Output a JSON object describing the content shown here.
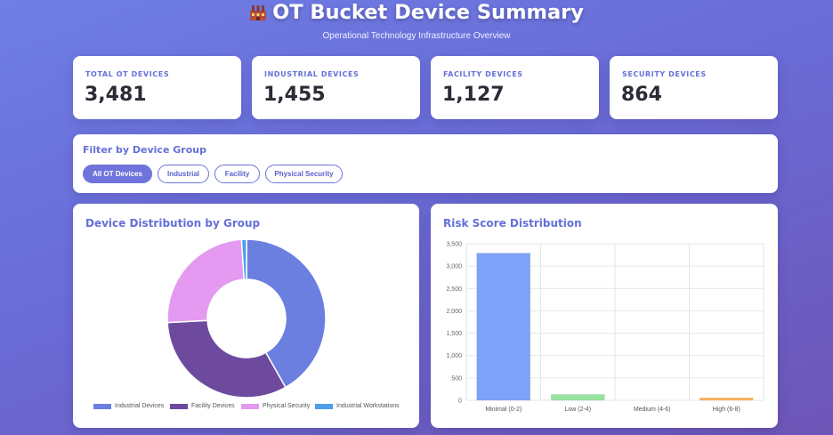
{
  "header": {
    "title": "OT Bucket Device Summary",
    "title_icon": "factory-icon",
    "subtitle": "Operational Technology Infrastructure Overview"
  },
  "stats": [
    {
      "label": "TOTAL OT DEVICES",
      "value": "3,481"
    },
    {
      "label": "INDUSTRIAL DEVICES",
      "value": "1,455"
    },
    {
      "label": "FACILITY DEVICES",
      "value": "1,127"
    },
    {
      "label": "SECURITY DEVICES",
      "value": "864"
    }
  ],
  "filter": {
    "title": "Filter by Device Group",
    "buttons": [
      {
        "label": "All OT Devices",
        "active": true
      },
      {
        "label": "Industrial",
        "active": false
      },
      {
        "label": "Facility",
        "active": false
      },
      {
        "label": "Physical Security",
        "active": false
      }
    ]
  },
  "colors": {
    "accent": "#6470d8",
    "industrial": "#6b7fe0",
    "facility": "#6d4a9e",
    "security": "#e39af0",
    "workstations": "#4c9fe8",
    "bar_minimal": "#7ea2f7",
    "bar_low": "#98e3a0",
    "bar_medium": "#f5c06a",
    "bar_high": "#f6b25a"
  },
  "chart_data": [
    {
      "type": "pie",
      "title": "Device Distribution by Group",
      "categories": [
        "Industrial Devices",
        "Facility Devices",
        "Physical Security",
        "Industrial Workstations"
      ],
      "values": [
        1455,
        1127,
        864,
        35
      ],
      "legend": "bottom"
    },
    {
      "type": "bar",
      "title": "Risk Score Distribution",
      "categories": [
        "Minimal (0-2)",
        "Low (2-4)",
        "Medium (4-6)",
        "High (6-8)"
      ],
      "values": [
        3290,
        130,
        0,
        55
      ],
      "ylim": [
        0,
        3500
      ],
      "yticks": [
        "0",
        "500",
        "1,000",
        "1,500",
        "2,000",
        "2,500",
        "3,000",
        "3,500"
      ],
      "grid": true
    }
  ]
}
